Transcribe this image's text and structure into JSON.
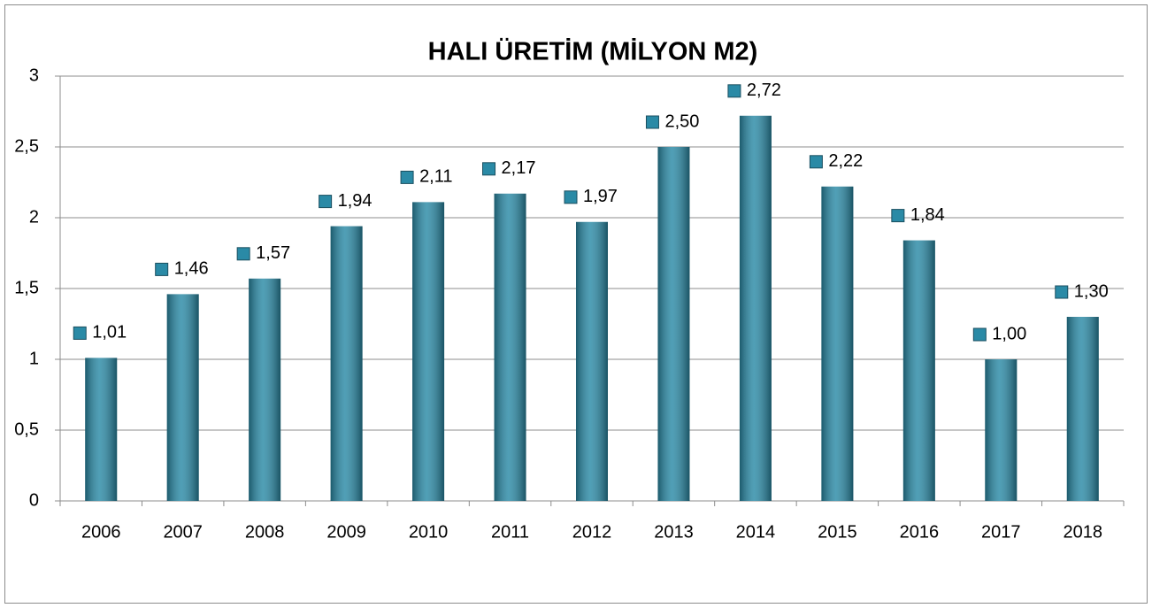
{
  "chart_data": {
    "type": "bar",
    "title": "HALI ÜRETİM (MİLYON M2)",
    "categories": [
      "2006",
      "2007",
      "2008",
      "2009",
      "2010",
      "2011",
      "2012",
      "2013",
      "2014",
      "2015",
      "2016",
      "2017",
      "2018"
    ],
    "values": [
      1.01,
      1.46,
      1.57,
      1.94,
      2.11,
      2.17,
      1.97,
      2.5,
      2.72,
      2.22,
      1.84,
      1.0,
      1.3
    ],
    "value_labels": [
      "1,01",
      "1,46",
      "1,57",
      "1,94",
      "2,11",
      "2,17",
      "1,97",
      "2,50",
      "2,72",
      "2,22",
      "1,84",
      "1,00",
      "1,30"
    ],
    "color": "#2a8aa6",
    "ylim": [
      0,
      3
    ],
    "yticks": [
      0,
      {
        "value": 0.5,
        "label": "0,5"
      },
      1,
      {
        "value": 1.5,
        "label": "1,5"
      },
      2,
      {
        "value": 2.5,
        "label": "2,5"
      },
      3
    ],
    "grid": true
  }
}
